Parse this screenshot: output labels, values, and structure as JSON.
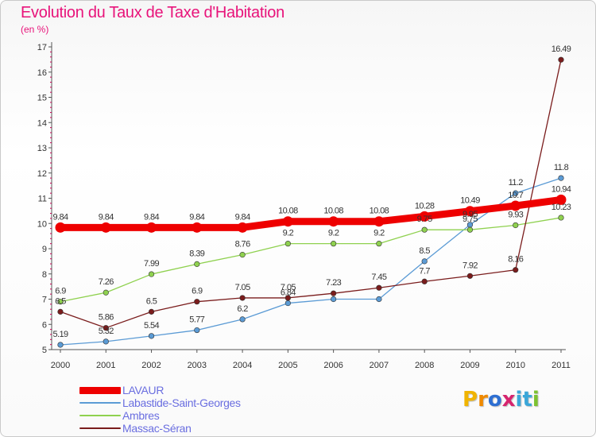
{
  "title": "Evolution du Taux de Taxe d'Habitation",
  "subtitle": "(en %)",
  "brand": {
    "letters": [
      "P",
      "r",
      "o",
      "x",
      "i",
      "t",
      "i"
    ],
    "colors": [
      "#f0b400",
      "#f08a00",
      "#2e6fd2",
      "#d6246e",
      "#3aa6d8",
      "#3aa6d8",
      "#7cc230"
    ]
  },
  "chart_data": {
    "type": "line",
    "x": [
      "2000",
      "2001",
      "2002",
      "2003",
      "2004",
      "2005",
      "2006",
      "2007",
      "2008",
      "2009",
      "2010",
      "2011"
    ],
    "yticks": [
      5,
      6,
      7,
      8,
      9,
      10,
      11,
      12,
      13,
      14,
      15,
      16,
      17
    ],
    "ylim": [
      5,
      17
    ],
    "grid": false,
    "legend_position": "bottom-left",
    "series": [
      {
        "name": "LAVAUR",
        "color": "#ee0000",
        "values": [
          9.84,
          9.84,
          9.84,
          9.84,
          9.84,
          10.08,
          10.08,
          10.08,
          10.28,
          10.49,
          10.7,
          10.94
        ],
        "labels": [
          "9.84",
          "9.84",
          "9.84",
          "9.84",
          "9.84",
          "10.08",
          "10.08",
          "10.08",
          "10.28",
          "10.49",
          "10.7",
          "10.94"
        ]
      },
      {
        "name": "Labastide-Saint-Georges",
        "color": "#5b9bd5",
        "values": [
          5.19,
          5.32,
          5.54,
          5.77,
          6.2,
          6.84,
          7.0,
          7.0,
          8.5,
          9.95,
          11.2,
          11.8
        ],
        "labels": [
          "5.19",
          "5.32",
          "5.54",
          "5.77",
          "6.2",
          "6.84",
          "",
          "",
          "8.5",
          "9.95",
          "11.2",
          "11.8"
        ]
      },
      {
        "name": "Ambres",
        "color": "#8fd14f",
        "values": [
          6.9,
          7.26,
          7.99,
          8.39,
          8.76,
          9.2,
          9.2,
          9.2,
          9.75,
          9.75,
          9.93,
          10.23
        ],
        "labels": [
          "6.9",
          "7.26",
          "7.99",
          "8.39",
          "8.76",
          "9.2",
          "9.2",
          "9.2",
          "9.75",
          "9.75",
          "9.93",
          "10.23"
        ]
      },
      {
        "name": "Massac-Séran",
        "color": "#7a1c1c",
        "values": [
          6.5,
          5.86,
          6.5,
          6.9,
          7.05,
          7.05,
          7.23,
          7.45,
          7.7,
          7.92,
          8.16,
          16.49
        ],
        "labels": [
          "6.5",
          "5.86",
          "6.5",
          "6.9",
          "7.05",
          "7.05",
          "7.23",
          "7.45",
          "7.7",
          "7.92",
          "8.16",
          "16.49"
        ]
      }
    ]
  }
}
